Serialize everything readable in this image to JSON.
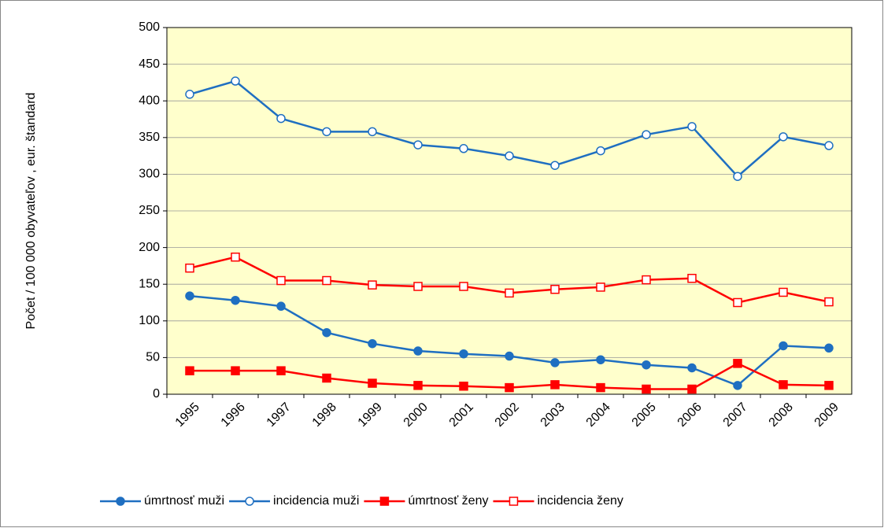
{
  "chart_data": {
    "type": "line",
    "y_label": "Počet / 100 000 obyvateľov , eur. štandard",
    "categories": [
      "1995",
      "1996",
      "1997",
      "1998",
      "1999",
      "2000",
      "2001",
      "2002",
      "2003",
      "2004",
      "2005",
      "2006",
      "2007",
      "2008",
      "2009"
    ],
    "series": [
      {
        "name": "úmrtnosť muži",
        "color": "#1f6fc1",
        "marker": "circle-filled",
        "values": [
          134,
          128,
          120,
          84,
          69,
          59,
          55,
          52,
          43,
          47,
          40,
          36,
          12,
          66,
          63
        ]
      },
      {
        "name": "incidencia muži",
        "color": "#1f6fc1",
        "marker": "circle-open",
        "values": [
          409,
          427,
          376,
          358,
          358,
          340,
          335,
          325,
          312,
          332,
          354,
          365,
          297,
          351,
          339
        ]
      },
      {
        "name": "úmrtnosť ženy",
        "color": "#ff0000",
        "marker": "square-filled",
        "values": [
          32,
          32,
          32,
          22,
          15,
          12,
          11,
          9,
          13,
          9,
          7,
          7,
          42,
          13,
          12
        ]
      },
      {
        "name": "incidencia ženy",
        "color": "#ff0000",
        "marker": "square-open",
        "values": [
          172,
          187,
          155,
          155,
          149,
          147,
          147,
          138,
          143,
          146,
          156,
          158,
          125,
          139,
          126
        ]
      }
    ],
    "ylim": [
      0,
      500
    ],
    "yticks": [
      0,
      50,
      100,
      150,
      200,
      250,
      300,
      350,
      400,
      450,
      500
    ],
    "grid": true
  }
}
